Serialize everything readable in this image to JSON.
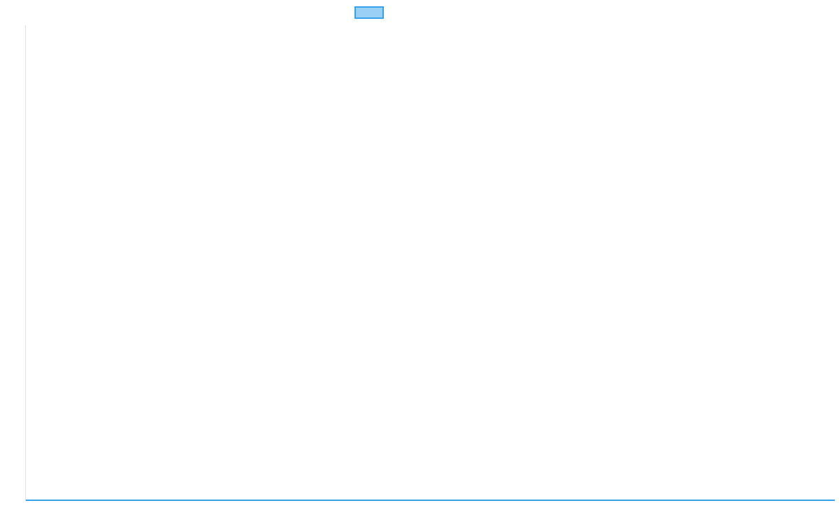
{
  "chart_data": {
    "type": "line",
    "title": "",
    "xlabel": "",
    "ylabel": "",
    "categories": [
      "",
      ""
    ],
    "series": [
      {
        "values": [
          0,
          0
        ],
        "color": "#36a2eb",
        "fill": "#9ad0f5"
      }
    ],
    "legend": "top",
    "grid": false
  }
}
